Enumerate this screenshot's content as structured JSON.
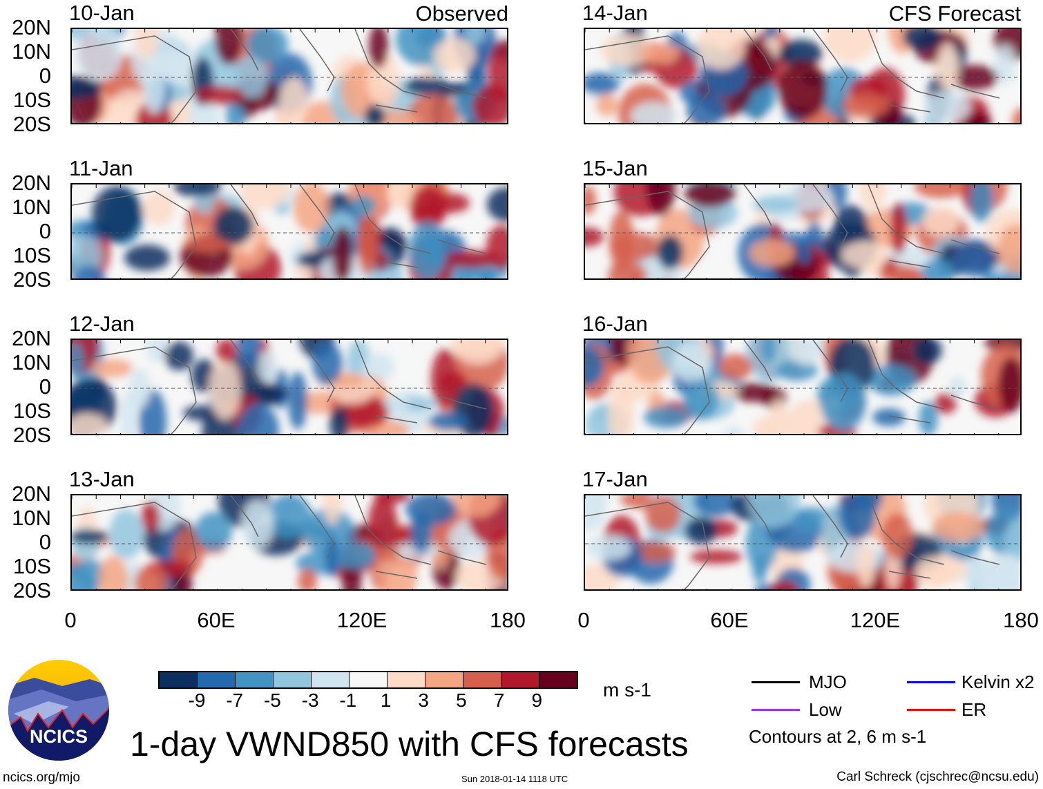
{
  "header": {
    "left_label": "Observed",
    "right_label": "CFS Forecast"
  },
  "panels": [
    {
      "date": "10-Jan",
      "group": "observed"
    },
    {
      "date": "11-Jan",
      "group": "observed"
    },
    {
      "date": "12-Jan",
      "group": "observed"
    },
    {
      "date": "13-Jan",
      "group": "observed"
    },
    {
      "date": "14-Jan",
      "group": "forecast"
    },
    {
      "date": "15-Jan",
      "group": "forecast"
    },
    {
      "date": "16-Jan",
      "group": "forecast"
    },
    {
      "date": "17-Jan",
      "group": "forecast"
    }
  ],
  "lat_labels": [
    "20N",
    "10N",
    "0",
    "10S",
    "20S"
  ],
  "lon_labels": [
    "0",
    "60E",
    "120E",
    "180"
  ],
  "colorbar": {
    "unit": "m s-1",
    "ticks": [
      "-9",
      "-7",
      "-5",
      "-3",
      "-1",
      "1",
      "3",
      "5",
      "7",
      "9"
    ],
    "colors": [
      "#0b2f5f",
      "#2469ad",
      "#4393c3",
      "#92c5de",
      "#d1e5f0",
      "#f7f7f7",
      "#fddbc7",
      "#f4a582",
      "#d6604d",
      "#b2182b",
      "#67001f"
    ]
  },
  "legend": {
    "items": [
      {
        "label": "MJO",
        "color": "#000000"
      },
      {
        "label": "Kelvin x2",
        "color": "#0000ff"
      },
      {
        "label": "Low",
        "color": "#9b30ff"
      },
      {
        "label": "ER",
        "color": "#ff0000"
      }
    ],
    "note": "Contours at 2, 6 m s-1"
  },
  "title": "1-day VWND850 with CFS forecasts",
  "logo_text": "NCICS",
  "footer": {
    "url": "ncics.org/mjo",
    "timestamp": "Sun 2018-01-14 1118 UTC",
    "author": "Carl Schreck (cjschrec@ncsu.edu)"
  }
}
